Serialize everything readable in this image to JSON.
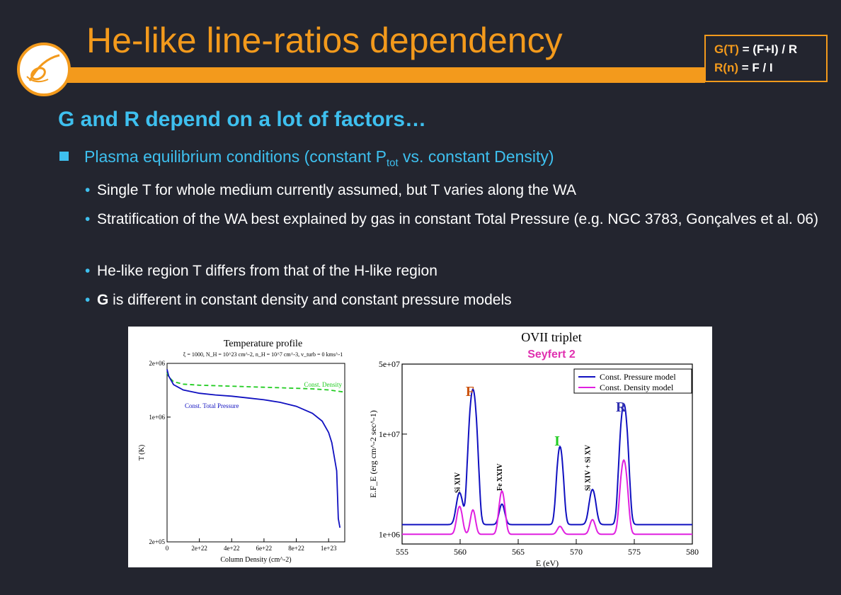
{
  "slide": {
    "title": "He-like line-ratios dependency",
    "formulas": {
      "g_lhs": "G(T)",
      "g_rhs": " = (F+I) / R",
      "r_lhs": "R(n)",
      "r_rhs": " =  F / I"
    },
    "heading": "G and R depend on a lot of factors…",
    "bullet1": {
      "before": "Plasma equilibrium conditions (constant P",
      "sub": "tot",
      "after": " vs. constant Density)"
    },
    "sub_bullets": [
      "Single T for whole medium currently assumed, but T varies along the WA",
      "Stratification of the WA best explained by gas in constant Total Pressure (e.g. NGC 3783, Gonçalves et al. 06)",
      "He-like region T differs from that of the H-like region"
    ],
    "last_bullet": {
      "bold": "G",
      "rest": " is different in constant density and constant pressure models"
    },
    "colors": {
      "orange": "#f39a1c",
      "cyan": "#3ec0ef",
      "background": "#23252f"
    }
  },
  "chart_data": [
    {
      "type": "line",
      "title": "Temperature profile",
      "subtitle": "ξ = 1000, N_H = 10^23 cm^-2, n_H = 10^7 cm^-3, v_turb = 0 kms^-1",
      "xlabel": "Column Density (cm^-2)",
      "ylabel": "T (K)",
      "xlim": [
        0,
        1.1e+23
      ],
      "ylim": [
        200000.0,
        2000000.0
      ],
      "yscale": "log",
      "xticks": [
        "0",
        "2e+22",
        "4e+22",
        "6e+22",
        "8e+22",
        "1e+23"
      ],
      "yticks": [
        "2e+06",
        "1e+06",
        "2e+05"
      ],
      "series": [
        {
          "name": "Const. Density",
          "style": "dashed",
          "color": "#22cc22",
          "x": [
            0,
            1e+21,
            4e+21,
            1e+22,
            2e+22,
            4e+22,
            6e+22,
            8e+22,
            9e+22,
            1e+23,
            1.1e+23
          ],
          "y": [
            1780000.0,
            1680000.0,
            1580000.0,
            1530000.0,
            1510000.0,
            1490000.0,
            1470000.0,
            1450000.0,
            1440000.0,
            1420000.0,
            1380000.0
          ]
        },
        {
          "name": "Const. Total Pressure",
          "style": "solid",
          "color": "#1010c0",
          "x": [
            0,
            1e+21,
            4e+21,
            1e+22,
            2e+22,
            3e+22,
            4e+22,
            5e+22,
            6e+22,
            7e+22,
            8e+22,
            9e+22,
            9.6e+22,
            1e+23,
            1.02e+23,
            1.05e+23,
            1.06e+23,
            1.07e+23
          ],
          "y": [
            1850000.0,
            1700000.0,
            1520000.0,
            1420000.0,
            1360000.0,
            1330000.0,
            1310000.0,
            1280000.0,
            1250000.0,
            1210000.0,
            1150000.0,
            1050000.0,
            950000.0,
            820000.0,
            720000.0,
            500000.0,
            270000.0,
            240000.0
          ]
        }
      ]
    },
    {
      "type": "line",
      "title": "OVII  triplet",
      "subtitle": "Seyfert 2",
      "xlabel": "E (eV)",
      "ylabel": "E.F_E  (erg cm^-2 sec^-1)",
      "xlim": [
        555,
        580
      ],
      "ylim": [
        800000.0,
        50000000.0
      ],
      "yscale": "log",
      "xticks": [
        "555",
        "560",
        "565",
        "570",
        "575",
        "580"
      ],
      "yticks": [
        "5e+07",
        "1e+07",
        "1e+06"
      ],
      "line_labels": [
        {
          "text": "F",
          "x": 561.1,
          "color": "#cc5511"
        },
        {
          "text": "I",
          "x": 568.6,
          "color": "#22cc22"
        },
        {
          "text": "R",
          "x": 574.1,
          "color": "#3030b0"
        }
      ],
      "feature_labels": [
        {
          "text": "Si XIV",
          "x": 559.8
        },
        {
          "text": "Fe XXIV",
          "x": 563.4
        },
        {
          "text": "Si XIV + Si XV",
          "x": 571.0
        }
      ],
      "baseline": {
        "pressure": 1250000.0,
        "density": 1000000.0
      },
      "series": [
        {
          "name": "Const. Pressure model",
          "color": "#1010c0",
          "peaks": [
            {
              "x": 559.95,
              "y": 2600000.0,
              "w": 0.25
            },
            {
              "x": 561.1,
              "y": 28000000.0,
              "w": 0.25
            },
            {
              "x": 563.6,
              "y": 2000000.0,
              "w": 0.22
            },
            {
              "x": 568.6,
              "y": 7500000.0,
              "w": 0.22
            },
            {
              "x": 571.4,
              "y": 2800000.0,
              "w": 0.25
            },
            {
              "x": 574.1,
              "y": 20000000.0,
              "w": 0.25
            }
          ]
        },
        {
          "name": "Const. Density  model",
          "color": "#e020e0",
          "peaks": [
            {
              "x": 559.95,
              "y": 1900000.0,
              "w": 0.22
            },
            {
              "x": 561.1,
              "y": 1750000.0,
              "w": 0.2
            },
            {
              "x": 563.6,
              "y": 2700000.0,
              "w": 0.22
            },
            {
              "x": 568.6,
              "y": 1200000.0,
              "w": 0.22
            },
            {
              "x": 571.4,
              "y": 1400000.0,
              "w": 0.22
            },
            {
              "x": 574.1,
              "y": 5500000.0,
              "w": 0.25
            }
          ]
        }
      ]
    }
  ]
}
